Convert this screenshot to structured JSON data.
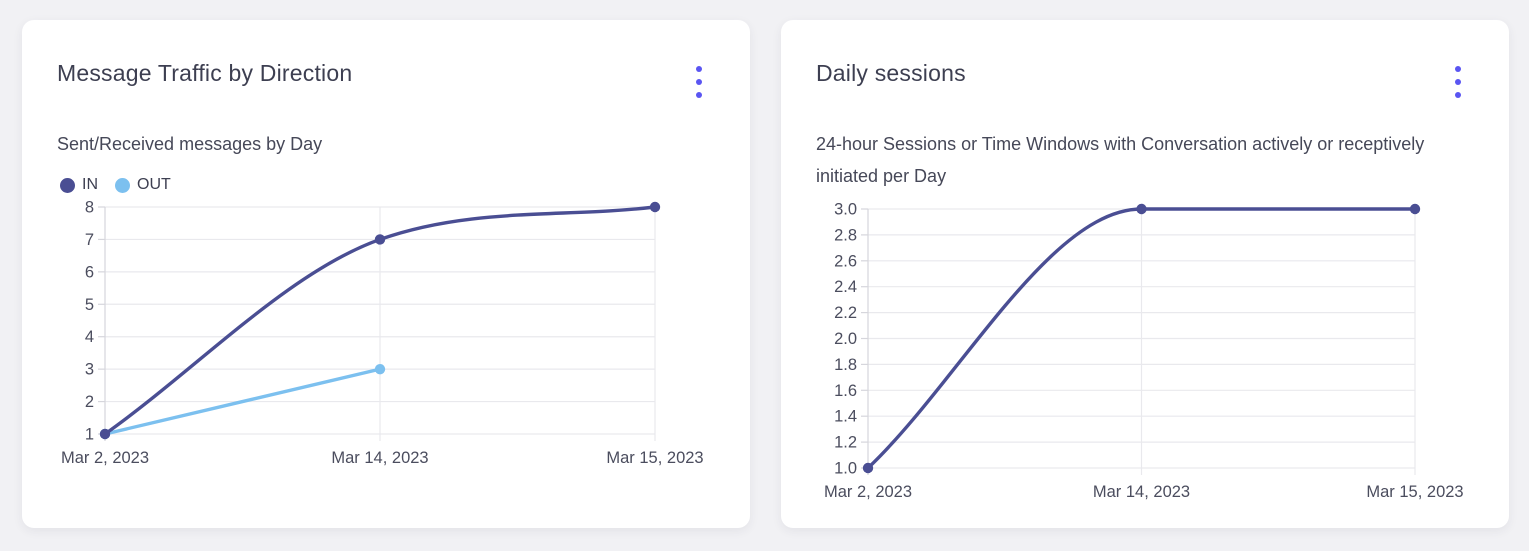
{
  "page": {
    "background_color": "#f1f1f4",
    "accent_color": "#5a55f2"
  },
  "cards": [
    {
      "title": "Message Traffic by Direction",
      "subtitle": "Sent/Received messages by Day",
      "menu_icon": "kebab-menu",
      "chart_data": {
        "type": "line",
        "title": "Message Traffic by Direction",
        "categories": [
          "Mar 2, 2023",
          "Mar 14, 2023",
          "Mar 15, 2023"
        ],
        "series": [
          {
            "name": "IN",
            "color": "#4a4e93",
            "values": [
              1,
              7,
              8
            ]
          },
          {
            "name": "OUT",
            "color": "#7cc0ef",
            "values": [
              1,
              3,
              null
            ]
          }
        ],
        "ylim": [
          1,
          8
        ],
        "yticks": [
          1,
          2,
          3,
          4,
          5,
          6,
          7,
          8
        ],
        "ytick_labels": [
          "1",
          "2",
          "3",
          "4",
          "5",
          "6",
          "7",
          "8"
        ],
        "legend": true,
        "legend_position": "top-left",
        "grid": true,
        "curve": "monotone",
        "point_style": "circle"
      }
    },
    {
      "title": "Daily sessions",
      "subtitle": "24-hour Sessions or Time Windows with Conversation actively or receptively initiated per Day",
      "menu_icon": "kebab-menu",
      "chart_data": {
        "type": "line",
        "title": "Daily sessions",
        "categories": [
          "Mar 2, 2023",
          "Mar 14, 2023",
          "Mar 15, 2023"
        ],
        "series": [
          {
            "color": "#4a4e93",
            "values": [
              1,
              3,
              3
            ]
          }
        ],
        "ylim": [
          1,
          3
        ],
        "yticks": [
          1,
          1.2,
          1.4,
          1.6,
          1.8,
          2,
          2.2,
          2.4,
          2.6,
          2.8,
          3
        ],
        "ytick_labels": [
          "1.0",
          "1.2",
          "1.4",
          "1.6",
          "1.8",
          "2.0",
          "2.2",
          "2.4",
          "2.6",
          "2.8",
          "3.0"
        ],
        "legend": false,
        "grid": true,
        "curve": "monotone",
        "point_style": "circle"
      }
    }
  ]
}
